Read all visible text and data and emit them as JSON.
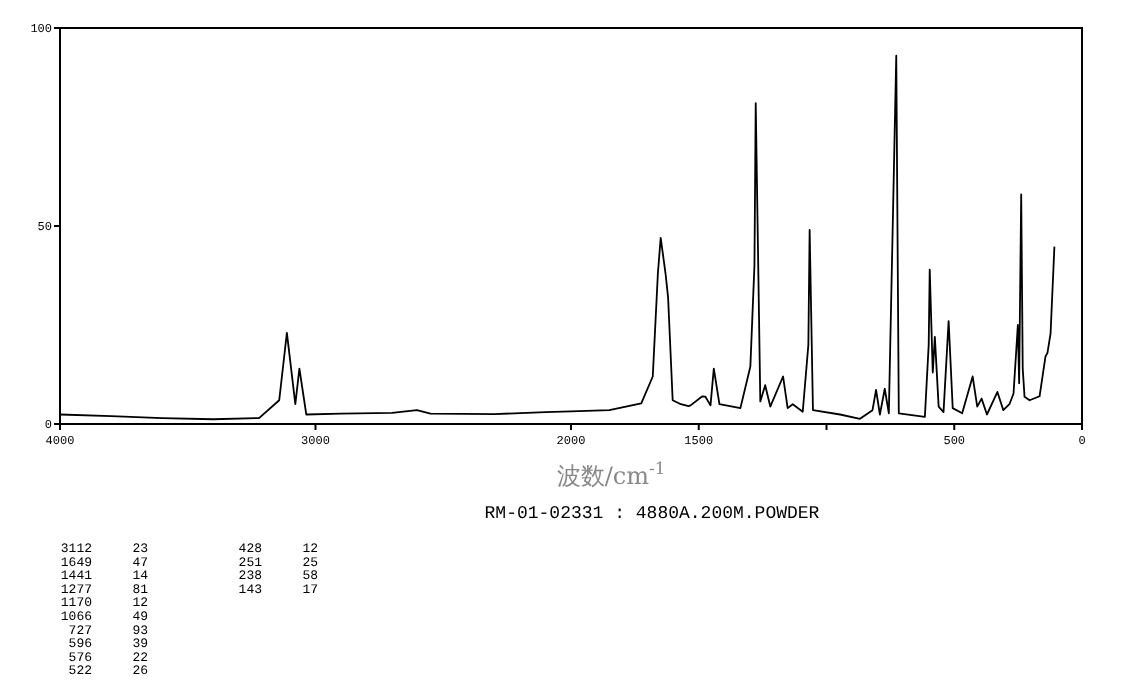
{
  "chart_data": {
    "type": "line",
    "xlabel": "波数/cm$^{-1}$",
    "xlim": [
      4000,
      0
    ],
    "xticks": [
      4000,
      3000,
      2000,
      1500,
      {
        "value": 1000,
        "label": null
      },
      500,
      0
    ],
    "ylim": [
      0,
      100
    ],
    "yticks": [
      0,
      50,
      100
    ],
    "series": [
      {
        "color": "#000000",
        "x": [
          4000,
          3800,
          3600,
          3400,
          3221,
          3142,
          3112,
          3079,
          3063,
          3036,
          2900,
          2700,
          2603,
          2550,
          2300,
          2100,
          2000,
          1850,
          1725,
          1680,
          1660,
          1649,
          1630,
          1620,
          1602,
          1570,
          1540,
          1532,
          1486,
          1474,
          1454,
          1441,
          1419,
          1337,
          1298,
          1282,
          1277,
          1259,
          1240,
          1220,
          1170,
          1152,
          1132,
          1093,
          1071,
          1066,
          1053,
          947,
          869,
          820,
          806,
          791,
          772,
          756,
          727,
          717,
          615,
          600,
          596,
          584,
          576,
          561,
          542,
          522,
          506,
          469,
          428,
          410,
          393,
          372,
          331,
          308,
          284,
          268,
          251,
          246,
          238,
          232,
          225,
          205,
          166,
          143,
          135,
          123,
          108
        ],
        "values": [
          2.4,
          2.0,
          1.5,
          1.2,
          1.5,
          6,
          23,
          5,
          14,
          2.4,
          2.6,
          2.8,
          3.5,
          2.6,
          2.5,
          3,
          3.2,
          3.5,
          5.2,
          12,
          38,
          47,
          38,
          32,
          6,
          5,
          4.5,
          4.7,
          7,
          6.9,
          4.7,
          14,
          5,
          4,
          14.5,
          40,
          81,
          5.7,
          9.8,
          4.4,
          12,
          4,
          5,
          3.1,
          20,
          49,
          3.5,
          2.4,
          1.3,
          3.5,
          8.6,
          2.4,
          8.9,
          2.7,
          93,
          2.7,
          1.8,
          20,
          39,
          13,
          22,
          4.4,
          3,
          26,
          4,
          2.7,
          12,
          4.4,
          6.4,
          2.4,
          8.1,
          3.5,
          5,
          7.7,
          25,
          10.3,
          58,
          14,
          6.9,
          6,
          7,
          17,
          18,
          22.9,
          44.8
        ]
      }
    ],
    "annotations": [
      "RM-01-02331 : 4880A.200M.POWDER",
      "3112 23",
      "1649 47",
      "1441 14",
      "1277 81",
      "1170 12",
      "1066 49",
      "727 93",
      "596 39",
      "576 22",
      "522 26",
      "428 12",
      "251 25",
      "238 58",
      "143 17"
    ]
  }
}
